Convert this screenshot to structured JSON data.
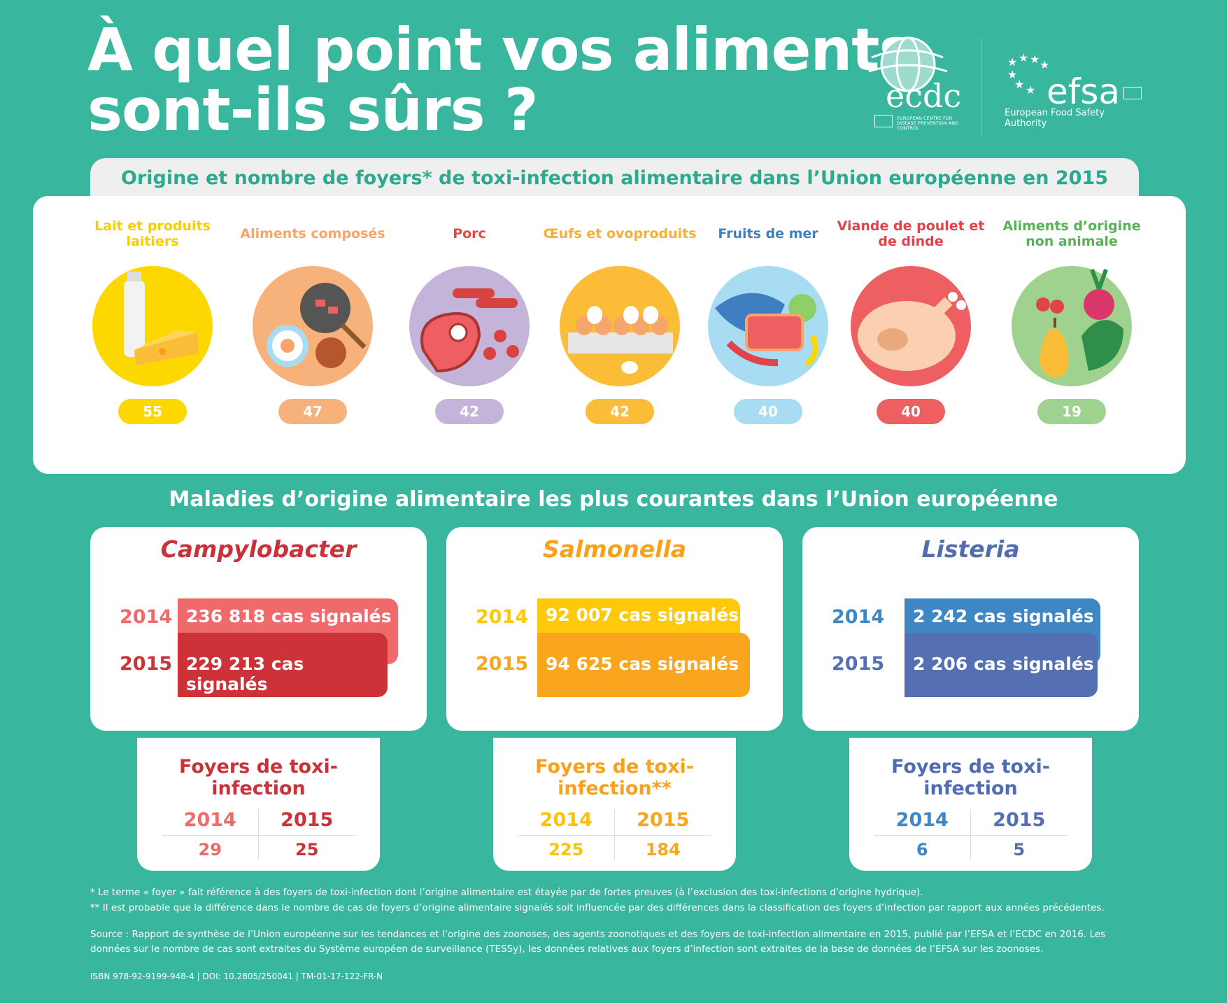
{
  "title_line1": "À quel point vos aliments",
  "title_line2": "sont-ils sûrs ?",
  "logos": {
    "ecdc": "ecdc",
    "ecdc_sub": "EUROPEAN CENTRE FOR DISEASE PREVENTION AND CONTROL",
    "efsa": "efsa",
    "efsa_sub": "European Food Safety Authority"
  },
  "section1_title": "Origine et nombre de foyers* de toxi-infection alimentaire dans l’Union européenne en 2015",
  "categories": [
    {
      "label": "Lait et produits laitiers",
      "value": "55",
      "color": "#fdd800",
      "text_color": "#f5cf00",
      "icon": "milk-cheese-icon"
    },
    {
      "label": "Aliments composés",
      "value": "47",
      "color": "#f7b27b",
      "text_color": "#f6a56b",
      "icon": "mixed-food-icon"
    },
    {
      "label": "Porc",
      "value": "42",
      "color": "#c5b4d9",
      "text_color": "#e54848",
      "icon": "pork-icon"
    },
    {
      "label": "Œufs et ovoproduits",
      "value": "42",
      "color": "#fbbd38",
      "text_color": "#f5b031",
      "icon": "eggs-icon"
    },
    {
      "label": "Fruits de mer",
      "value": "40",
      "color": "#a7dcf3",
      "text_color": "#3f80bf",
      "icon": "seafood-icon"
    },
    {
      "label": "Viande de poulet et de dinde",
      "value": "40",
      "color": "#ee5f62",
      "text_color": "#e0444a",
      "icon": "poultry-icon"
    },
    {
      "label": "Aliments d’origine non animale",
      "value": "19",
      "color": "#9fd28e",
      "text_color": "#56b157",
      "icon": "vegetables-icon"
    }
  ],
  "section2_title": "Maladies d’origine alimentaire les plus courantes dans l’Union européenne",
  "diseases": [
    {
      "name": "Campylobacter",
      "y2014": "2014",
      "y2015": "2015",
      "cases2014": "236 818 cas signalés",
      "cases2015": "229 213 cas signalés",
      "outbreaks_title": "Foyers de toxi-infection",
      "out2014": "29",
      "out2015": "25"
    },
    {
      "name": "Salmonella",
      "y2014": "2014",
      "y2015": "2015",
      "cases2014": "92 007 cas signalés",
      "cases2015": "94 625 cas signalés",
      "outbreaks_title": "Foyers de toxi-infection**",
      "out2014": "225",
      "out2015": "184"
    },
    {
      "name": "Listeria",
      "y2014": "2014",
      "y2015": "2015",
      "cases2014": "2 242 cas signalés",
      "cases2015": "2 206 cas signalés",
      "outbreaks_title": "Foyers de toxi-infection",
      "out2014": "6",
      "out2015": "5"
    }
  ],
  "footnotes": {
    "n1": "* Le terme « foyer » fait référence à des foyers de toxi-infection dont l’origine alimentaire est étayée par de fortes preuves (à l’exclusion des toxi-infections d’origine hydrique).",
    "n2": "** Il est probable que la différence dans le nombre de cas de foyers d’origine alimentaire signalés soit influencée par des différences dans la classification des foyers d’infection par rapport aux années précédentes.",
    "source": "Source : Rapport de synthèse de l’Union européenne sur les tendances et l’origine des zoonoses, des agents zoonotiques et des foyers de toxi-infection alimentaire en 2015, publié par l’EFSA et l’ECDC en 2016. Les données sur le nombre de cas sont extraites du Système européen de surveillance (TESSy), les données relatives aux foyers d’infection  sont extraites de la base de données de l’EFSA sur les zoonoses.",
    "isbn": "ISBN 978-92-9199-948-4 | DOI: 10.2805/250041 | TM-01-17-122-FR-N"
  }
}
